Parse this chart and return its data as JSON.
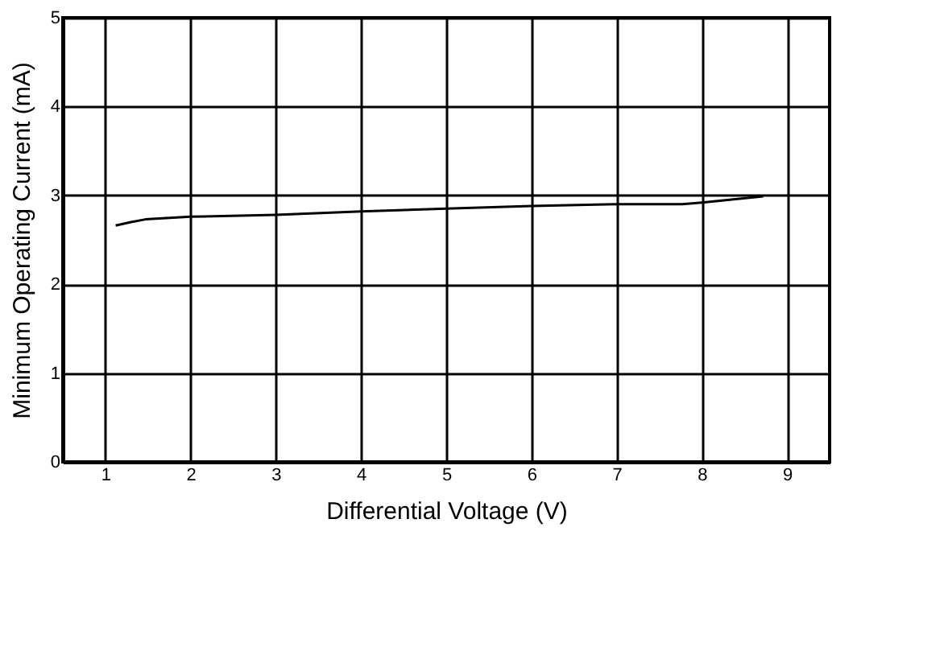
{
  "chart_data": {
    "type": "line",
    "xlabel": "Differential Voltage (V)",
    "ylabel": "Minimum Operating Current (mA)",
    "x": [
      1.12,
      1.3,
      1.47,
      2.0,
      3.0,
      4.0,
      5.0,
      6.0,
      7.0,
      7.77,
      8.0,
      8.72
    ],
    "series": [
      {
        "color": "#000000",
        "values": [
          2.66,
          2.7,
          2.73,
          2.76,
          2.78,
          2.82,
          2.85,
          2.88,
          2.9,
          2.9,
          2.92,
          2.99
        ]
      }
    ],
    "xlim": [
      0.5,
      9.5
    ],
    "xticks": [
      1,
      2,
      3,
      4,
      5,
      6,
      7,
      8,
      9
    ],
    "ylim": [
      0,
      5
    ],
    "yticks": [
      0,
      1,
      2,
      3,
      4,
      5
    ],
    "grid": true,
    "marker": "none",
    "line_style": "solid"
  }
}
